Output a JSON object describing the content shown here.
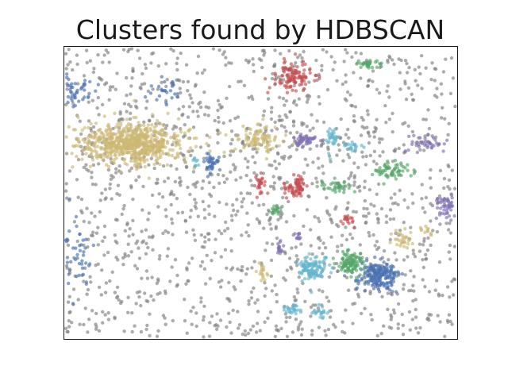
{
  "chart_data": {
    "type": "scatter",
    "title": "Clusters found by HDBSCAN",
    "xlabel": "",
    "ylabel": "",
    "xlim": [
      0,
      100
    ],
    "ylim": [
      0,
      100
    ],
    "grid": false,
    "axes_ticks_visible": false,
    "point_alpha": 0.65,
    "noise": {
      "color": "#808080",
      "count": 1500,
      "seed": 7
    },
    "clusters": [
      {
        "color": "#4c72b0",
        "cx": 3.5,
        "cy": 85,
        "sx": 2.2,
        "sy": 2.5,
        "n": 45,
        "seed": 11
      },
      {
        "color": "#4c72b0",
        "cx": 25,
        "cy": 85,
        "sx": 2.0,
        "sy": 2.0,
        "n": 25,
        "seed": 12
      },
      {
        "color": "#4c72b0",
        "cx": 37,
        "cy": 60,
        "sx": 1.0,
        "sy": 1.6,
        "n": 35,
        "seed": 13
      },
      {
        "color": "#4c72b0",
        "cx": 3.5,
        "cy": 28,
        "sx": 1.8,
        "sy": 6.0,
        "n": 45,
        "seed": 14
      },
      {
        "color": "#4c72b0",
        "cx": 80,
        "cy": 22,
        "sx": 2.5,
        "sy": 2.5,
        "n": 200,
        "seed": 15
      },
      {
        "color": "#ccb974",
        "cx": 17,
        "cy": 67,
        "sx": 6.5,
        "sy": 3.5,
        "n": 700,
        "seed": 21
      },
      {
        "color": "#ccb974",
        "cx": 49,
        "cy": 69,
        "sx": 3.0,
        "sy": 2.2,
        "n": 90,
        "seed": 22
      },
      {
        "color": "#ccb974",
        "cx": 50,
        "cy": 23,
        "sx": 0.8,
        "sy": 2.0,
        "n": 18,
        "seed": 23
      },
      {
        "color": "#ccb974",
        "cx": 86,
        "cy": 34,
        "sx": 1.5,
        "sy": 1.8,
        "n": 30,
        "seed": 24
      },
      {
        "color": "#ccb974",
        "cx": 92,
        "cy": 37,
        "sx": 1.0,
        "sy": 1.0,
        "n": 12,
        "seed": 25
      },
      {
        "color": "#c44e52",
        "cx": 58,
        "cy": 90,
        "sx": 2.4,
        "sy": 2.4,
        "n": 110,
        "seed": 31
      },
      {
        "color": "#c44e52",
        "cx": 50,
        "cy": 53,
        "sx": 0.9,
        "sy": 1.6,
        "n": 25,
        "seed": 32
      },
      {
        "color": "#c44e52",
        "cx": 59,
        "cy": 52,
        "sx": 1.4,
        "sy": 1.6,
        "n": 70,
        "seed": 33
      },
      {
        "color": "#c44e52",
        "cx": 72,
        "cy": 41,
        "sx": 1.0,
        "sy": 1.0,
        "n": 18,
        "seed": 34
      },
      {
        "color": "#55a868",
        "cx": 78,
        "cy": 94,
        "sx": 1.6,
        "sy": 0.8,
        "n": 30,
        "seed": 41
      },
      {
        "color": "#55a868",
        "cx": 83,
        "cy": 58,
        "sx": 2.5,
        "sy": 1.5,
        "n": 60,
        "seed": 42
      },
      {
        "color": "#55a868",
        "cx": 69,
        "cy": 52,
        "sx": 2.2,
        "sy": 1.3,
        "n": 35,
        "seed": 43
      },
      {
        "color": "#55a868",
        "cx": 54,
        "cy": 44,
        "sx": 1.0,
        "sy": 1.0,
        "n": 20,
        "seed": 44
      },
      {
        "color": "#55a868",
        "cx": 73,
        "cy": 26,
        "sx": 1.6,
        "sy": 1.8,
        "n": 100,
        "seed": 45
      },
      {
        "color": "#8172b2",
        "cx": 61,
        "cy": 68,
        "sx": 1.6,
        "sy": 1.0,
        "n": 50,
        "seed": 51
      },
      {
        "color": "#8172b2",
        "cx": 93,
        "cy": 67,
        "sx": 2.5,
        "sy": 1.6,
        "n": 40,
        "seed": 52
      },
      {
        "color": "#8172b2",
        "cx": 97,
        "cy": 45,
        "sx": 1.5,
        "sy": 2.0,
        "n": 55,
        "seed": 53
      },
      {
        "color": "#8172b2",
        "cx": 55,
        "cy": 31,
        "sx": 0.8,
        "sy": 1.0,
        "n": 15,
        "seed": 54
      },
      {
        "color": "#8172b2",
        "cx": 59,
        "cy": 35,
        "sx": 0.6,
        "sy": 0.8,
        "n": 10,
        "seed": 55
      },
      {
        "color": "#64b5cd",
        "cx": 68,
        "cy": 69,
        "sx": 1.0,
        "sy": 2.2,
        "n": 30,
        "seed": 61
      },
      {
        "color": "#64b5cd",
        "cx": 73,
        "cy": 66,
        "sx": 1.6,
        "sy": 1.0,
        "n": 20,
        "seed": 62
      },
      {
        "color": "#64b5cd",
        "cx": 33,
        "cy": 60,
        "sx": 0.6,
        "sy": 0.8,
        "n": 8,
        "seed": 63
      },
      {
        "color": "#64b5cd",
        "cx": 63,
        "cy": 24,
        "sx": 2.0,
        "sy": 2.2,
        "n": 110,
        "seed": 64
      },
      {
        "color": "#64b5cd",
        "cx": 58,
        "cy": 10,
        "sx": 1.3,
        "sy": 0.9,
        "n": 25,
        "seed": 65
      },
      {
        "color": "#64b5cd",
        "cx": 65,
        "cy": 9,
        "sx": 1.0,
        "sy": 0.8,
        "n": 20,
        "seed": 66
      }
    ]
  }
}
